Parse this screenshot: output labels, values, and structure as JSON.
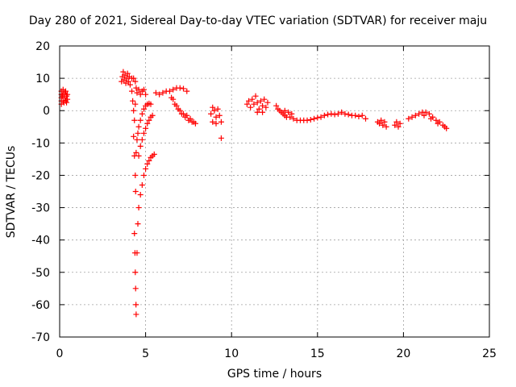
{
  "chart_data": {
    "type": "scatter",
    "title": "Day 280 of 2021, Sidereal Day-to-day VTEC variation (SDTVAR) for receiver maju",
    "xlabel": "GPS time / hours",
    "ylabel": "SDTVAR / TECUs",
    "xlim": [
      0,
      25
    ],
    "ylim": [
      -70,
      20
    ],
    "xticks": [
      "0",
      "5",
      "10",
      "15",
      "20",
      "25"
    ],
    "yticks": [
      "20",
      "10",
      "0",
      "-10",
      "-20",
      "-30",
      "-40",
      "-50",
      "-60",
      "-70"
    ],
    "grid": true,
    "marker": "+",
    "color": "#ff0000",
    "series": [
      {
        "name": "SDTVAR",
        "points": [
          [
            0.1,
            2
          ],
          [
            0.1,
            3
          ],
          [
            0.1,
            4
          ],
          [
            0.1,
            5
          ],
          [
            0.1,
            6
          ],
          [
            0.15,
            4.5
          ],
          [
            0.2,
            3
          ],
          [
            0.2,
            5
          ],
          [
            0.2,
            6.5
          ],
          [
            0.25,
            2.5
          ],
          [
            0.3,
            4
          ],
          [
            0.3,
            5.5
          ],
          [
            0.35,
            3
          ],
          [
            0.35,
            6
          ],
          [
            0.4,
            4.5
          ],
          [
            0.4,
            2.5
          ],
          [
            0.45,
            3.5
          ],
          [
            0.45,
            5
          ],
          [
            3.6,
            9
          ],
          [
            3.65,
            10.5
          ],
          [
            3.7,
            12
          ],
          [
            3.75,
            9.5
          ],
          [
            3.8,
            11
          ],
          [
            3.85,
            8.5
          ],
          [
            3.9,
            10
          ],
          [
            3.95,
            11.5
          ],
          [
            4.0,
            9
          ],
          [
            4.05,
            10.5
          ],
          [
            4.1,
            8
          ],
          [
            4.2,
            10
          ],
          [
            4.3,
            10
          ],
          [
            4.4,
            9
          ],
          [
            4.2,
            6
          ],
          [
            4.25,
            3
          ],
          [
            4.3,
            0
          ],
          [
            4.35,
            -3
          ],
          [
            4.4,
            2
          ],
          [
            4.45,
            7
          ],
          [
            4.5,
            5.5
          ],
          [
            4.6,
            6.5
          ],
          [
            4.7,
            5
          ],
          [
            4.8,
            6
          ],
          [
            4.9,
            6.5
          ],
          [
            5.0,
            5
          ],
          [
            4.3,
            -8
          ],
          [
            4.35,
            -14
          ],
          [
            4.4,
            -20
          ],
          [
            4.42,
            -25
          ],
          [
            4.45,
            -13
          ],
          [
            4.5,
            -9
          ],
          [
            4.55,
            -7
          ],
          [
            4.6,
            -5
          ],
          [
            4.7,
            -3
          ],
          [
            4.8,
            -1
          ],
          [
            4.9,
            0.5
          ],
          [
            5.0,
            1.5
          ],
          [
            5.1,
            2
          ],
          [
            5.2,
            2.2
          ],
          [
            5.3,
            2
          ],
          [
            4.35,
            -38
          ],
          [
            4.38,
            -44
          ],
          [
            4.4,
            -50
          ],
          [
            4.42,
            -55
          ],
          [
            4.44,
            -60
          ],
          [
            4.45,
            -63
          ],
          [
            4.5,
            -44
          ],
          [
            4.55,
            -35
          ],
          [
            4.6,
            -30
          ],
          [
            4.7,
            -26
          ],
          [
            4.8,
            -23
          ],
          [
            4.9,
            -20
          ],
          [
            5.0,
            -18
          ],
          [
            5.1,
            -16.5
          ],
          [
            5.2,
            -15.5
          ],
          [
            5.3,
            -14.5
          ],
          [
            5.4,
            -14
          ],
          [
            5.5,
            -13.5
          ],
          [
            4.6,
            -14
          ],
          [
            4.7,
            -11
          ],
          [
            4.8,
            -9
          ],
          [
            4.9,
            -7
          ],
          [
            5.0,
            -5.5
          ],
          [
            5.1,
            -4
          ],
          [
            5.2,
            -3
          ],
          [
            5.3,
            -2
          ],
          [
            5.4,
            -1.5
          ],
          [
            5.6,
            5.5
          ],
          [
            5.8,
            5
          ],
          [
            6.0,
            5.5
          ],
          [
            6.2,
            6
          ],
          [
            6.4,
            6
          ],
          [
            6.6,
            6.5
          ],
          [
            6.8,
            7
          ],
          [
            7.0,
            7
          ],
          [
            7.2,
            6.8
          ],
          [
            7.4,
            6
          ],
          [
            6.5,
            4
          ],
          [
            6.7,
            2
          ],
          [
            6.9,
            0.5
          ],
          [
            7.1,
            -1
          ],
          [
            7.3,
            -2
          ],
          [
            7.5,
            -3
          ],
          [
            7.7,
            -3.5
          ],
          [
            7.9,
            -4
          ],
          [
            6.6,
            3.5
          ],
          [
            6.8,
            1.5
          ],
          [
            7.0,
            0
          ],
          [
            7.2,
            -1
          ],
          [
            7.4,
            -1.5
          ],
          [
            7.6,
            -2.5
          ],
          [
            7.8,
            -3.5
          ],
          [
            8.8,
            -1
          ],
          [
            8.9,
            1
          ],
          [
            9.0,
            0
          ],
          [
            9.1,
            -2
          ],
          [
            9.2,
            0.5
          ],
          [
            9.3,
            -1.5
          ],
          [
            8.9,
            -3.5
          ],
          [
            9.1,
            -4
          ],
          [
            9.4,
            -3.5
          ],
          [
            9.4,
            -8.5
          ],
          [
            10.9,
            2
          ],
          [
            11.0,
            3
          ],
          [
            11.1,
            1
          ],
          [
            11.2,
            3.5
          ],
          [
            11.3,
            2
          ],
          [
            11.4,
            4.5
          ],
          [
            11.5,
            2.5
          ],
          [
            11.6,
            0.5
          ],
          [
            11.7,
            3
          ],
          [
            11.8,
            1.5
          ],
          [
            11.9,
            3.5
          ],
          [
            12.0,
            1
          ],
          [
            12.1,
            2.5
          ],
          [
            11.5,
            -0.5
          ],
          [
            11.8,
            -0.5
          ],
          [
            12.6,
            1.5
          ],
          [
            12.7,
            0.5
          ],
          [
            12.8,
            0
          ],
          [
            12.9,
            -0.5
          ],
          [
            13.0,
            -1
          ],
          [
            13.1,
            -1.5
          ],
          [
            13.2,
            -2
          ],
          [
            13.4,
            -2
          ],
          [
            13.6,
            -2.5
          ],
          [
            13.8,
            -3
          ],
          [
            13.1,
            0
          ],
          [
            13.3,
            -0.5
          ],
          [
            13.5,
            -1
          ],
          [
            14.0,
            -3
          ],
          [
            14.2,
            -3
          ],
          [
            14.4,
            -3
          ],
          [
            14.6,
            -2.8
          ],
          [
            14.8,
            -2.5
          ],
          [
            15.0,
            -2.2
          ],
          [
            15.2,
            -2
          ],
          [
            15.4,
            -1.5
          ],
          [
            15.6,
            -1.2
          ],
          [
            15.8,
            -1
          ],
          [
            16.0,
            -1.2
          ],
          [
            16.2,
            -1
          ],
          [
            16.4,
            -0.5
          ],
          [
            16.6,
            -1
          ],
          [
            16.8,
            -1.2
          ],
          [
            17.0,
            -1.5
          ],
          [
            17.2,
            -1.5
          ],
          [
            17.4,
            -1.8
          ],
          [
            17.6,
            -1.5
          ],
          [
            17.8,
            -2.5
          ],
          [
            18.5,
            -3.5
          ],
          [
            18.6,
            -4
          ],
          [
            18.7,
            -3
          ],
          [
            18.8,
            -4.5
          ],
          [
            18.9,
            -3.5
          ],
          [
            19.0,
            -5
          ],
          [
            19.5,
            -4.5
          ],
          [
            19.6,
            -3.5
          ],
          [
            19.7,
            -5
          ],
          [
            19.8,
            -4
          ],
          [
            20.3,
            -2.5
          ],
          [
            20.5,
            -2
          ],
          [
            20.7,
            -1.5
          ],
          [
            20.9,
            -1
          ],
          [
            21.1,
            -0.5
          ],
          [
            21.3,
            -0.5
          ],
          [
            21.5,
            -1
          ],
          [
            21.7,
            -2
          ],
          [
            21.9,
            -3
          ],
          [
            22.1,
            -3.5
          ],
          [
            22.3,
            -4.5
          ],
          [
            22.5,
            -5.5
          ],
          [
            21.2,
            -1.5
          ],
          [
            21.6,
            -2.5
          ],
          [
            22.0,
            -4
          ],
          [
            22.4,
            -5
          ]
        ]
      }
    ]
  }
}
